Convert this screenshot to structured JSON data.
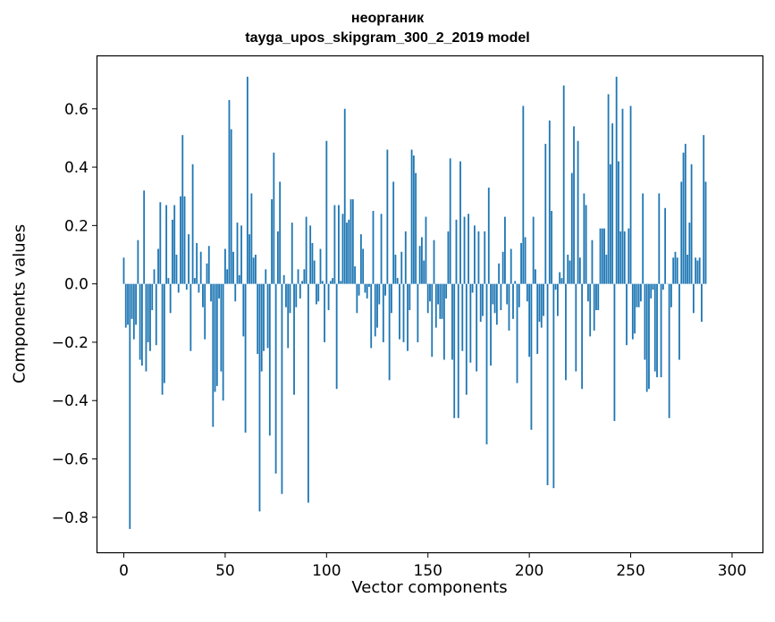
{
  "chart_data": {
    "type": "bar",
    "title": "неорганик",
    "subtitle": "tayga_upos_skipgram_300_2_2019 model",
    "xlabel": "Vector components",
    "ylabel": "Components values",
    "xlim": [
      -13,
      315
    ],
    "ylim": [
      -0.92,
      0.78
    ],
    "xticks": [
      0,
      50,
      100,
      150,
      200,
      250,
      300
    ],
    "xtick_labels": [
      "0",
      "50",
      "100",
      "150",
      "200",
      "250",
      "300"
    ],
    "yticks": [
      -0.8,
      -0.6,
      -0.4,
      -0.2,
      0.0,
      0.2,
      0.4,
      0.6
    ],
    "ytick_labels": [
      "−0.8",
      "−0.6",
      "−0.4",
      "−0.2",
      "0.0",
      "0.2",
      "0.4",
      "0.6"
    ],
    "bar_color": "#1f77b4",
    "grid": false,
    "legend": "none",
    "values": [
      0.09,
      -0.15,
      -0.14,
      -0.84,
      -0.12,
      -0.19,
      -0.14,
      0.15,
      -0.26,
      -0.28,
      0.32,
      -0.3,
      -0.2,
      -0.23,
      -0.09,
      0.05,
      -0.21,
      0.12,
      0.28,
      -0.38,
      -0.34,
      0.27,
      0.02,
      -0.1,
      0.22,
      0.27,
      0.1,
      -0.03,
      0.3,
      0.51,
      0.3,
      -0.02,
      0.17,
      -0.23,
      0.41,
      0.02,
      0.14,
      -0.03,
      0.11,
      -0.08,
      -0.19,
      0.07,
      0.13,
      -0.06,
      -0.49,
      -0.37,
      -0.35,
      -0.05,
      -0.3,
      -0.4,
      0.12,
      0.05,
      0.63,
      0.53,
      0.11,
      -0.06,
      0.21,
      0.03,
      0.2,
      -0.18,
      -0.51,
      0.71,
      0.17,
      0.31,
      0.09,
      0.1,
      -0.24,
      -0.78,
      -0.3,
      -0.23,
      0.05,
      -0.22,
      -0.52,
      0.29,
      0.45,
      -0.65,
      0.18,
      0.35,
      -0.72,
      0.03,
      -0.08,
      -0.22,
      -0.1,
      0.21,
      -0.38,
      -0.08,
      0.05,
      -0.05,
      0.01,
      0.05,
      0.23,
      -0.75,
      0.2,
      0.14,
      0.08,
      -0.07,
      -0.06,
      0.12,
      0.01,
      -0.2,
      0.49,
      -0.09,
      0.01,
      0.02,
      0.27,
      -0.36,
      0.27,
      0.01,
      0.24,
      0.6,
      0.21,
      0.22,
      0.29,
      0.29,
      0.06,
      -0.1,
      -0.04,
      0.17,
      0.12,
      -0.03,
      -0.05,
      -0.01,
      -0.22,
      0.25,
      -0.18,
      -0.15,
      -0.07,
      0.24,
      -0.2,
      -0.04,
      0.46,
      -0.33,
      -0.1,
      0.35,
      0.1,
      0.02,
      -0.19,
      0.11,
      -0.2,
      0.18,
      -0.23,
      -0.09,
      0.46,
      0.44,
      0.38,
      -0.2,
      0.13,
      0.16,
      0.08,
      0.23,
      -0.1,
      -0.06,
      -0.25,
      0.15,
      -0.15,
      -0.07,
      -0.12,
      -0.12,
      -0.26,
      -0.05,
      0.18,
      0.43,
      -0.26,
      -0.46,
      0.22,
      -0.46,
      0.42,
      -0.23,
      0.23,
      -0.38,
      0.24,
      -0.27,
      -0.03,
      0.2,
      -0.3,
      0.18,
      -0.13,
      -0.11,
      0.18,
      -0.55,
      0.33,
      -0.28,
      -0.07,
      -0.1,
      -0.14,
      0.07,
      -0.09,
      0.11,
      0.23,
      -0.07,
      -0.16,
      0.12,
      -0.12,
      0.01,
      -0.34,
      -0.08,
      0.14,
      0.61,
      0.16,
      -0.06,
      -0.25,
      -0.5,
      0.23,
      0.05,
      -0.24,
      -0.13,
      -0.15,
      -0.11,
      0.48,
      -0.69,
      0.56,
      0.25,
      -0.7,
      -0.02,
      -0.11,
      0.04,
      0.02,
      0.68,
      -0.33,
      0.1,
      0.08,
      0.38,
      0.54,
      -0.3,
      0.49,
      0.09,
      -0.36,
      0.31,
      0.27,
      -0.06,
      -0.18,
      0.15,
      -0.16,
      -0.09,
      -0.09,
      0.19,
      0.19,
      0.19,
      0.1,
      0.65,
      0.41,
      0.55,
      -0.47,
      0.71,
      0.42,
      0.18,
      0.6,
      0.18,
      -0.21,
      0.19,
      0.61,
      -0.19,
      -0.17,
      -0.08,
      -0.08,
      -0.06,
      0.31,
      -0.26,
      -0.37,
      -0.36,
      -0.05,
      -0.02,
      -0.3,
      -0.32,
      0.31,
      -0.32,
      -0.02,
      0.26,
      0.0,
      -0.46,
      -0.08,
      0.09,
      0.11,
      0.09,
      -0.26,
      0.35,
      0.45,
      0.48,
      0.1,
      0.21,
      0.41,
      -0.1,
      0.09,
      0.08,
      0.09,
      -0.13,
      0.51,
      0.35
    ]
  }
}
